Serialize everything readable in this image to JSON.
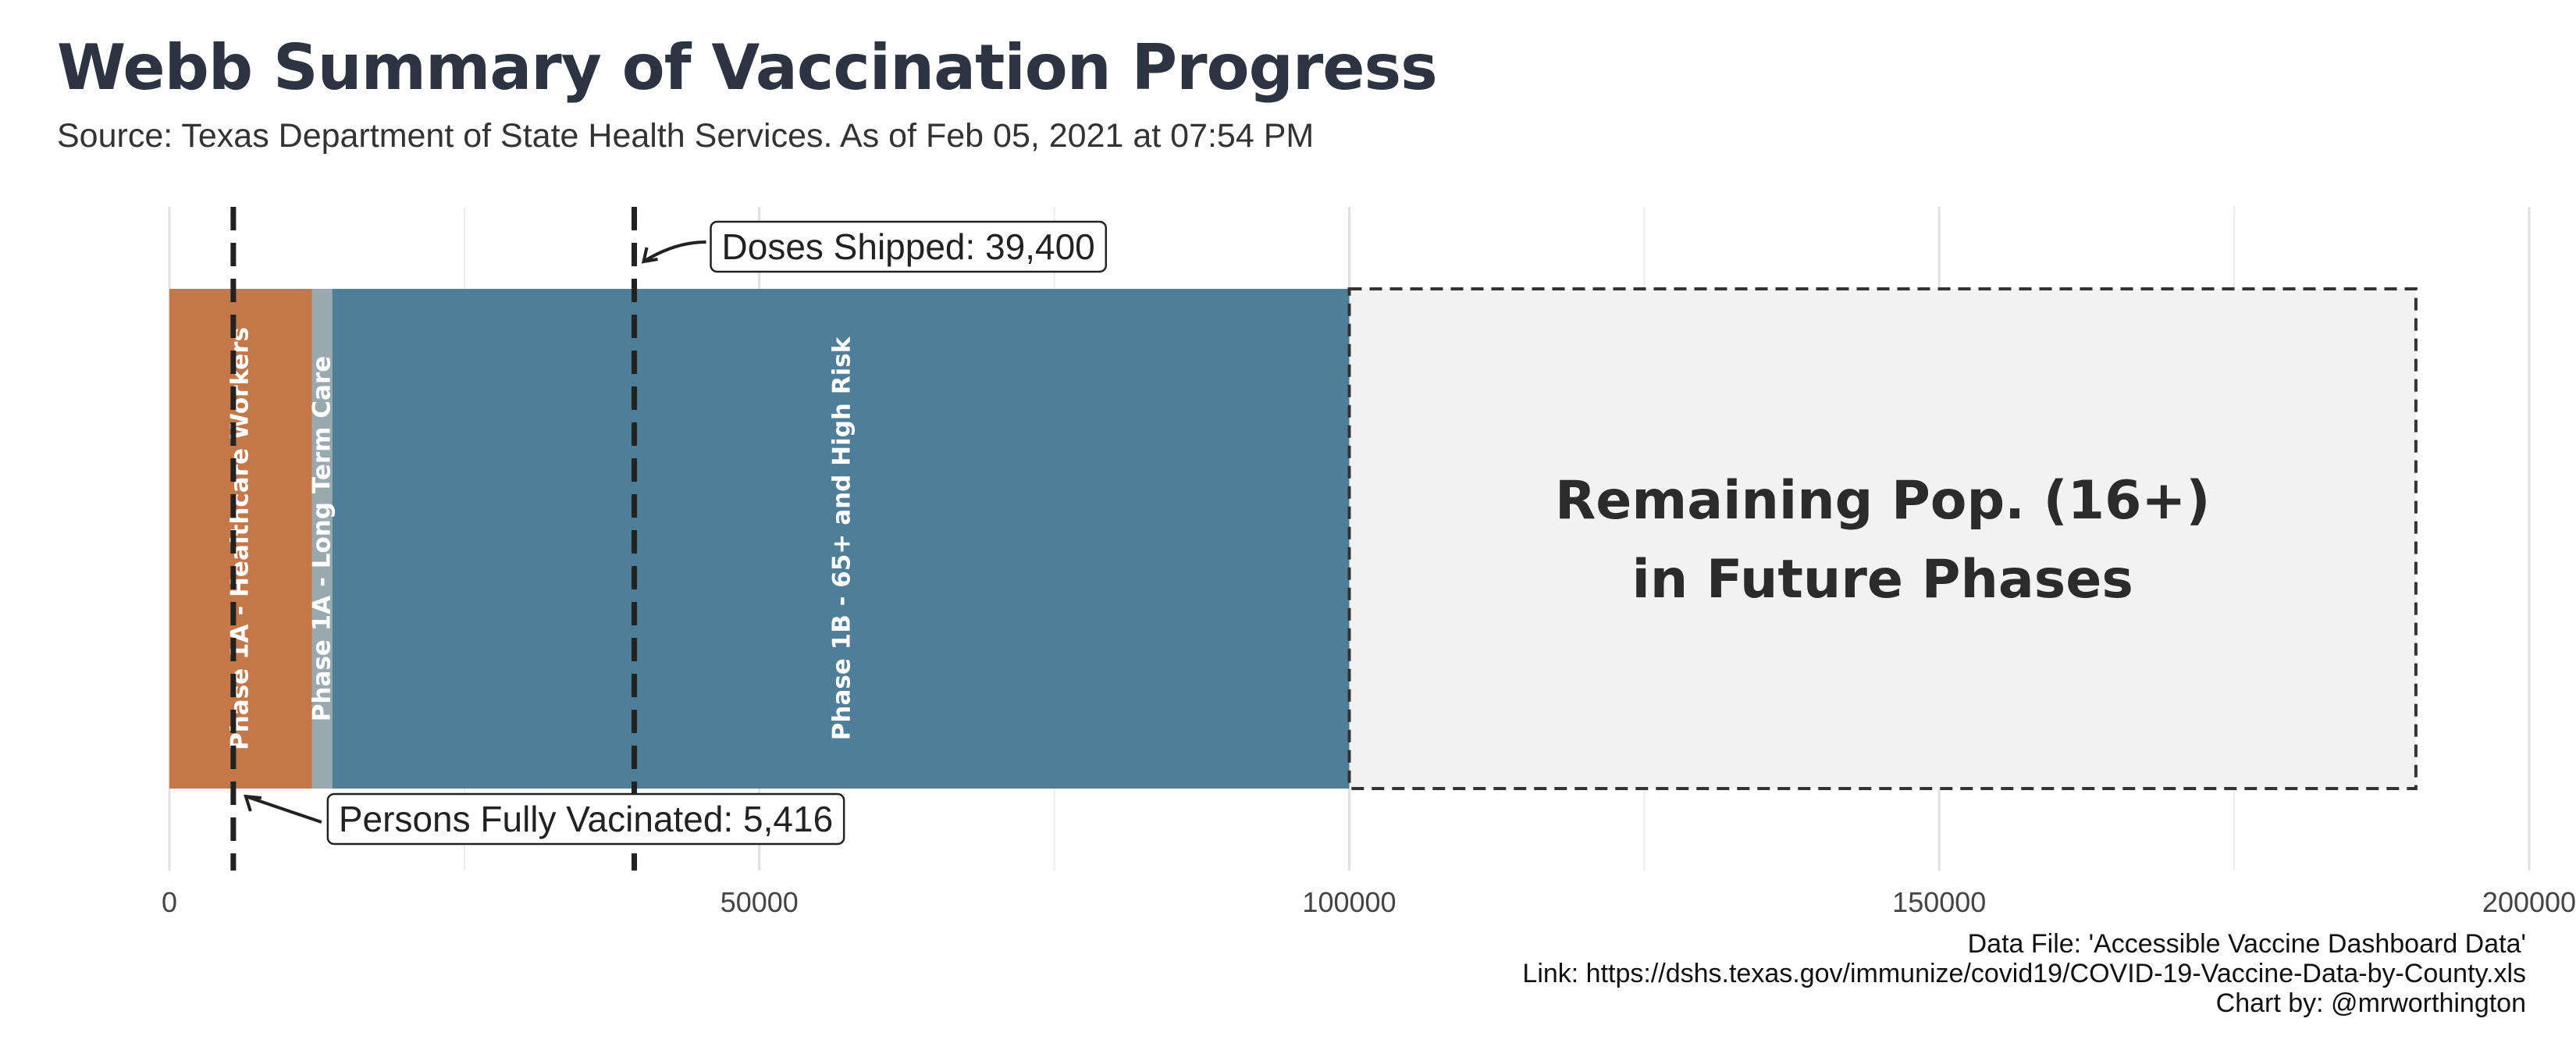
{
  "header": {
    "title": "Webb Summary of Vaccination Progress",
    "subtitle": "Source: Texas Department of State Health Services. As of Feb 05, 2021 at 07:54 PM"
  },
  "footer": {
    "data_file": "Data File: 'Accessible Vaccine Dashboard Data'",
    "link": "Link: https://dshs.texas.gov/immunize/covid19/COVID-19-Vaccine-Data-by-County.xls",
    "credit": "Chart by: @mrworthington"
  },
  "colors": {
    "healthcare": "#c4784a",
    "long_term_care": "#9aa8b0",
    "phase_1b": "#4f7e98",
    "remaining_fill": "#f2f2f2",
    "grid": "#e3e3e3",
    "text_dark": "#2b3440"
  },
  "chart_data": {
    "type": "bar",
    "orientation": "horizontal-stacked",
    "xlim": [
      0,
      200000
    ],
    "x_ticks": [
      0,
      50000,
      100000,
      150000,
      200000
    ],
    "x_tick_labels": [
      "0",
      "50000",
      "100000",
      "150000",
      "200000"
    ],
    "grid": true,
    "segments": [
      {
        "name": "Phase 1A - Healthcare Workers",
        "start": 0,
        "end": 12100,
        "color": "#c4784a",
        "label_position": 6000
      },
      {
        "name": "Phase 1A - Long Term Care",
        "start": 12100,
        "end": 13800,
        "color": "#9aa8b0",
        "label_position": 12950
      },
      {
        "name": "Phase 1B - 65+ and High Risk",
        "start": 13800,
        "end": 100000,
        "color": "#4f7e98",
        "label_position": 57000
      }
    ],
    "remaining": {
      "label_line1": "Remaining Pop. (16+)",
      "label_line2": "in Future Phases",
      "start": 100000,
      "end": 190400
    },
    "reference_lines": [
      {
        "name": "Doses Shipped",
        "value": 39400,
        "label": "Doses Shipped: 39,400"
      },
      {
        "name": "Persons Fully Vacinated",
        "value": 5416,
        "label": "Persons Fully Vacinated: 5,416"
      }
    ]
  }
}
